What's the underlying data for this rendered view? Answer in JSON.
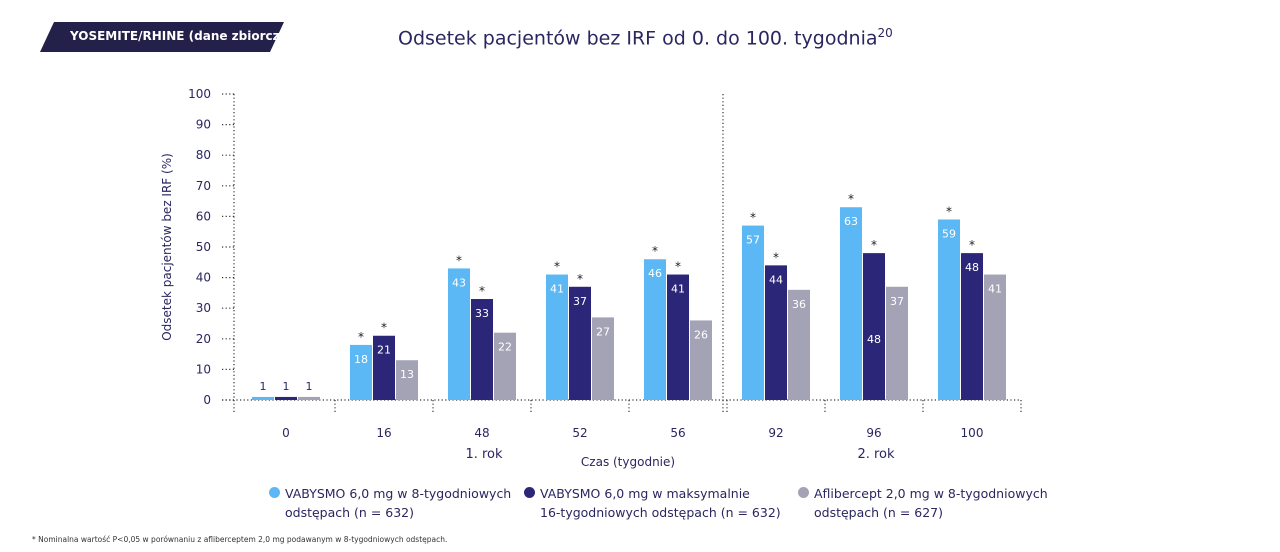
{
  "badge": "YOSEMITE/RHINE (dane zbiorcze)",
  "title": "Odsetek pacjentów bez IRF od 0. do 100. tygodnia",
  "title_ref": "20",
  "footnote": "* Nominalna wartość P<0,05 w porównaniu z afliberceptem 2,0 mg podawanym w 8-tygodniowych odstępach.",
  "chart_data": {
    "type": "bar",
    "title": "Odsetek pacjentów bez IRF od 0. do 100. tygodnia",
    "xlabel": "Czas (tygodnie)",
    "ylabel": "Odsetek pacjentów bez IRF (%)",
    "ylim": [
      0,
      100
    ],
    "yticks": [
      "0",
      "10",
      "20",
      "30",
      "40",
      "50",
      "60",
      "70",
      "80",
      "90",
      "100"
    ],
    "categories": [
      "0",
      "16",
      "48",
      "52",
      "56",
      "92",
      "96",
      "100"
    ],
    "period_labels": [
      {
        "label": "1. rok",
        "under": "48"
      },
      {
        "label": "2. rok",
        "under": "96"
      }
    ],
    "significance_marker": "*",
    "grid": false,
    "legend_position": "bottom",
    "series": [
      {
        "name": "VABYSMO 6,0 mg w 8-tygodniowych odstępach (n = 632)",
        "color": "#5bb8f5",
        "values": [
          1,
          18,
          43,
          41,
          46,
          57,
          63,
          59
        ],
        "significant": [
          false,
          true,
          true,
          true,
          true,
          true,
          true,
          true
        ]
      },
      {
        "name": "VABYSMO 6,0 mg w maksymalnie 16-tygodniowych odstępach (n = 632)",
        "color": "#2c2679",
        "values": [
          1,
          21,
          33,
          37,
          41,
          44,
          48,
          48
        ],
        "significant": [
          false,
          true,
          true,
          true,
          true,
          true,
          true,
          true
        ]
      },
      {
        "name": "Aflibercept 2,0 mg w 8-tygodniowych odstępach (n = 627)",
        "color": "#a3a3b5",
        "values": [
          1,
          13,
          22,
          27,
          26,
          36,
          37,
          41
        ],
        "significant": [
          false,
          false,
          false,
          false,
          false,
          false,
          false,
          false
        ]
      }
    ]
  },
  "legend": [
    {
      "line1": "VABYSMO 6,0 mg w 8-tygodniowych",
      "line2": "odstępach (n = 632)"
    },
    {
      "line1": "VABYSMO 6,0 mg w maksymalnie",
      "line2": "16-tygodniowych odstępach (n = 632)"
    },
    {
      "line1": "Aflibercept 2,0 mg w 8-tygodniowych",
      "line2": "odstępach (n = 627)"
    }
  ]
}
